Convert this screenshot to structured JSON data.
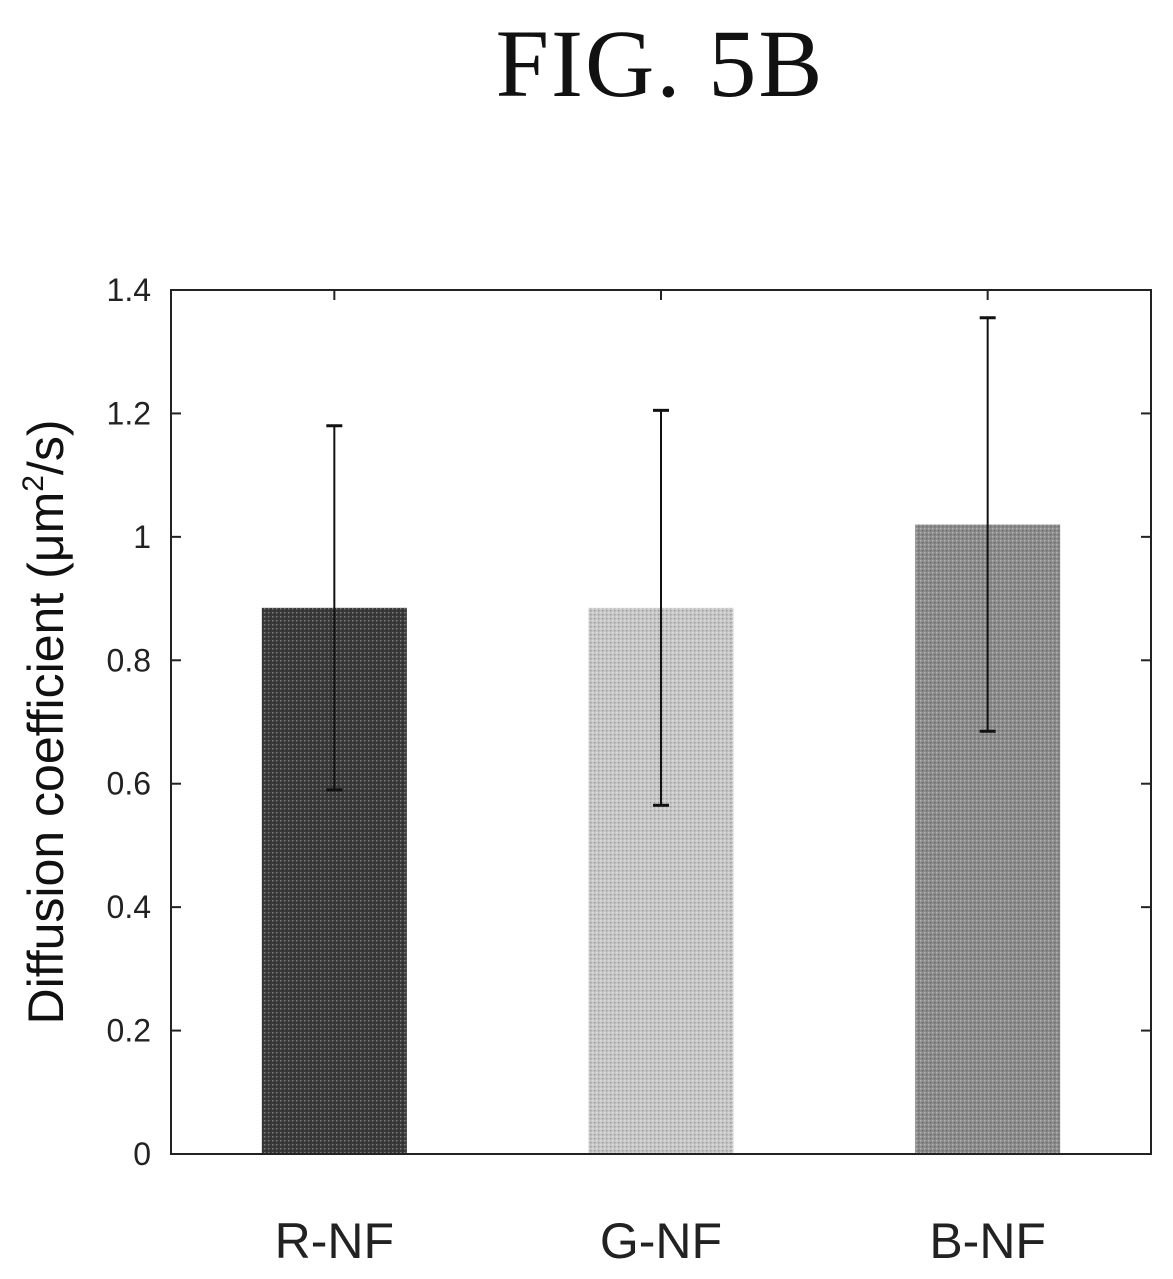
{
  "figure_label": "FIG. 5B",
  "chart_data": {
    "type": "bar",
    "title": "",
    "categories": [
      "R-NF",
      "G-NF",
      "B-NF"
    ],
    "values": [
      0.885,
      0.885,
      1.02
    ],
    "error_low": [
      0.59,
      0.565,
      0.685
    ],
    "error_high": [
      1.18,
      1.205,
      1.355
    ],
    "bar_colors": [
      "#3a3a3a",
      "#c8c8c8",
      "#8c8c8c"
    ],
    "ylabel_main": "Diffusion coefficient (μm",
    "ylabel_sup": "2",
    "ylabel_tail": "/s)",
    "xlabel": "",
    "ylim": [
      0,
      1.4
    ],
    "yticks": [
      0,
      0.2,
      0.4,
      0.6,
      0.8,
      1,
      1.2,
      1.4
    ],
    "ytick_labels": [
      "0",
      "0.2",
      "0.4",
      "0.6",
      "0.8",
      "1",
      "1.2",
      "1.4"
    ],
    "grid": false,
    "legend": "none"
  }
}
